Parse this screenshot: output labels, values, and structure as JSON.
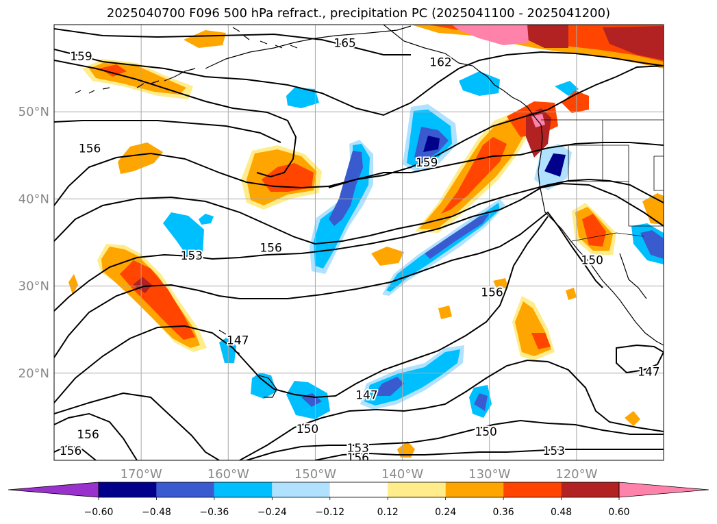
{
  "title": "2025040700 F096 500 hPa refract., precipitation PC (2025041100 - 2025041200)",
  "map": {
    "lon_range": [
      -180,
      -110
    ],
    "lat_range": [
      10,
      60
    ],
    "lat_ticks": [
      {
        "value": 50,
        "label": "50°N"
      },
      {
        "value": 40,
        "label": "40°N"
      },
      {
        "value": 30,
        "label": "30°N"
      },
      {
        "value": 20,
        "label": "20°N"
      }
    ],
    "lon_ticks": [
      {
        "value": -170,
        "label": "170°W"
      },
      {
        "value": -160,
        "label": "160°W"
      },
      {
        "value": -150,
        "label": "150°W"
      },
      {
        "value": -140,
        "label": "140°W"
      },
      {
        "value": -130,
        "label": "130°W"
      },
      {
        "value": -120,
        "label": "120°W"
      }
    ],
    "contour_labels": [
      {
        "text": "165",
        "lon": -146.6,
        "lat": 57.9
      },
      {
        "text": "159",
        "lon": -176.9,
        "lat": 56.4
      },
      {
        "text": "162",
        "lon": -135.6,
        "lat": 55.7
      },
      {
        "text": "156",
        "lon": -175.9,
        "lat": 45.8
      },
      {
        "text": "159",
        "lon": -137.2,
        "lat": 44.2
      },
      {
        "text": "156",
        "lon": -155.1,
        "lat": 34.4
      },
      {
        "text": "153",
        "lon": -164.2,
        "lat": 33.5
      },
      {
        "text": "150",
        "lon": -118.2,
        "lat": 33.0
      },
      {
        "text": "156",
        "lon": -129.7,
        "lat": 29.3
      },
      {
        "text": "147",
        "lon": -158.9,
        "lat": 23.8
      },
      {
        "text": "147",
        "lon": -144.1,
        "lat": 17.5
      },
      {
        "text": "147",
        "lon": -111.7,
        "lat": 20.2
      },
      {
        "text": "150",
        "lon": -150.9,
        "lat": 13.6
      },
      {
        "text": "150",
        "lon": -130.4,
        "lat": 13.3
      },
      {
        "text": "153",
        "lon": -145.1,
        "lat": 11.4
      },
      {
        "text": "156",
        "lon": -145.1,
        "lat": 10.3
      },
      {
        "text": "153",
        "lon": -122.6,
        "lat": 11.1
      },
      {
        "text": "156",
        "lon": -176.1,
        "lat": 13.0
      },
      {
        "text": "156",
        "lon": -178.1,
        "lat": 11.1
      }
    ]
  },
  "colorbar": {
    "levels": [
      -0.6,
      -0.48,
      -0.36,
      -0.24,
      -0.12,
      0.12,
      0.24,
      0.36,
      0.48,
      0.6
    ],
    "labels": [
      "−0.60",
      "−0.48",
      "−0.36",
      "−0.24",
      "−0.12",
      "0.12",
      "0.24",
      "0.36",
      "0.48",
      "0.60"
    ],
    "colors": [
      "#9932cc",
      "#00008b",
      "#3a5bd0",
      "#00bfff",
      "#b0e2ff",
      "#ffffff",
      "#ffec8b",
      "#ffa500",
      "#ff4500",
      "#b22222",
      "#ff82ab"
    ]
  }
}
